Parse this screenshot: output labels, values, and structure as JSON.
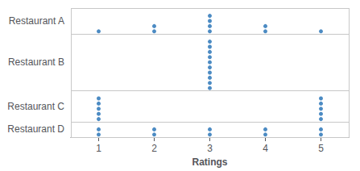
{
  "chart_data": {
    "type": "dot_plot",
    "xlabel": "Ratings",
    "categories": [
      "Restaurant A",
      "Restaurant B",
      "Restaurant C",
      "Restaurant D"
    ],
    "x": [
      1,
      2,
      3,
      4,
      5
    ],
    "counts": [
      [
        1,
        2,
        4,
        2,
        1
      ],
      [
        0,
        0,
        10,
        0,
        0
      ],
      [
        5,
        0,
        0,
        0,
        5
      ],
      [
        2,
        2,
        2,
        2,
        2
      ]
    ],
    "xlim": [
      0.5,
      5.5
    ],
    "xticks": [
      1,
      2,
      3,
      4,
      5
    ],
    "color": "#1f6eb4",
    "grid": true
  }
}
